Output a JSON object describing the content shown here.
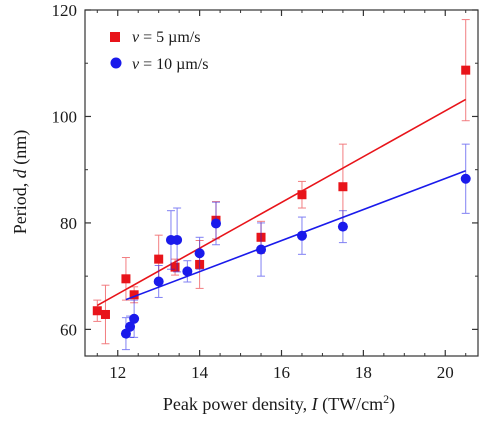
{
  "chart_data": {
    "type": "scatter",
    "xlabel": {
      "pre": "Peak power density, ",
      "var": "I",
      "unit": " (TW/cm",
      "sup": "2",
      "close": ")"
    },
    "ylabel": {
      "pre": "Period, ",
      "var": "d",
      "unit": " (nm)"
    },
    "xlim": [
      11.2,
      20.8
    ],
    "ylim": [
      55,
      120
    ],
    "xticks": [
      "12",
      "14",
      "16",
      "18",
      "20"
    ],
    "yticks": [
      "60",
      "80",
      "100",
      "120"
    ],
    "grid": false,
    "legend_position": "top-left",
    "series": [
      {
        "name": "v = 5 µm/s",
        "label_var": "v",
        "label_rest": " = 5 µm/s",
        "marker": "square",
        "color": "#e8141a",
        "points": [
          {
            "x": 11.5,
            "y": 63.5,
            "err": 2
          },
          {
            "x": 11.7,
            "y": 62.8,
            "err": 5.5
          },
          {
            "x": 12.2,
            "y": 69.5,
            "err": 4
          },
          {
            "x": 12.4,
            "y": 66.5,
            "err": 1.5
          },
          {
            "x": 13.0,
            "y": 73.2,
            "err": 4.5
          },
          {
            "x": 13.4,
            "y": 71.7,
            "err": 1.5
          },
          {
            "x": 14.0,
            "y": 72.2,
            "err": 4.5
          },
          {
            "x": 14.4,
            "y": 80.5,
            "err": 3.5
          },
          {
            "x": 15.5,
            "y": 77.3,
            "err": 3
          },
          {
            "x": 16.5,
            "y": 85.3,
            "err": 2.5
          },
          {
            "x": 17.5,
            "y": 86.8,
            "err": 8
          },
          {
            "x": 20.5,
            "y": 108.7,
            "err": 9.5
          }
        ],
        "fit": {
          "x": [
            11.5,
            20.5
          ],
          "y": [
            64.5,
            103.2
          ]
        }
      },
      {
        "name": "v = 10 µm/s",
        "label_var": "v",
        "label_rest": " = 10 µm/s",
        "marker": "circle",
        "color": "#1a1aeb",
        "points": [
          {
            "x": 12.2,
            "y": 59.2,
            "err": 3
          },
          {
            "x": 12.3,
            "y": 60.5,
            "err": 2
          },
          {
            "x": 12.4,
            "y": 62.0,
            "err": 3.5
          },
          {
            "x": 13.0,
            "y": 69.0,
            "err": 3
          },
          {
            "x": 13.3,
            "y": 76.8,
            "err": 5.5
          },
          {
            "x": 13.45,
            "y": 76.8,
            "err": 6
          },
          {
            "x": 13.7,
            "y": 70.9,
            "err": 2
          },
          {
            "x": 14.0,
            "y": 74.3,
            "err": 3
          },
          {
            "x": 14.4,
            "y": 79.9,
            "err": 4
          },
          {
            "x": 15.5,
            "y": 75.0,
            "err": 5
          },
          {
            "x": 16.5,
            "y": 77.6,
            "err": 3.5
          },
          {
            "x": 17.5,
            "y": 79.3,
            "err": 3
          },
          {
            "x": 20.5,
            "y": 88.3,
            "err": 6.5
          }
        ],
        "fit": {
          "x": [
            12.2,
            20.5
          ],
          "y": [
            65.6,
            89.8
          ]
        }
      }
    ]
  }
}
